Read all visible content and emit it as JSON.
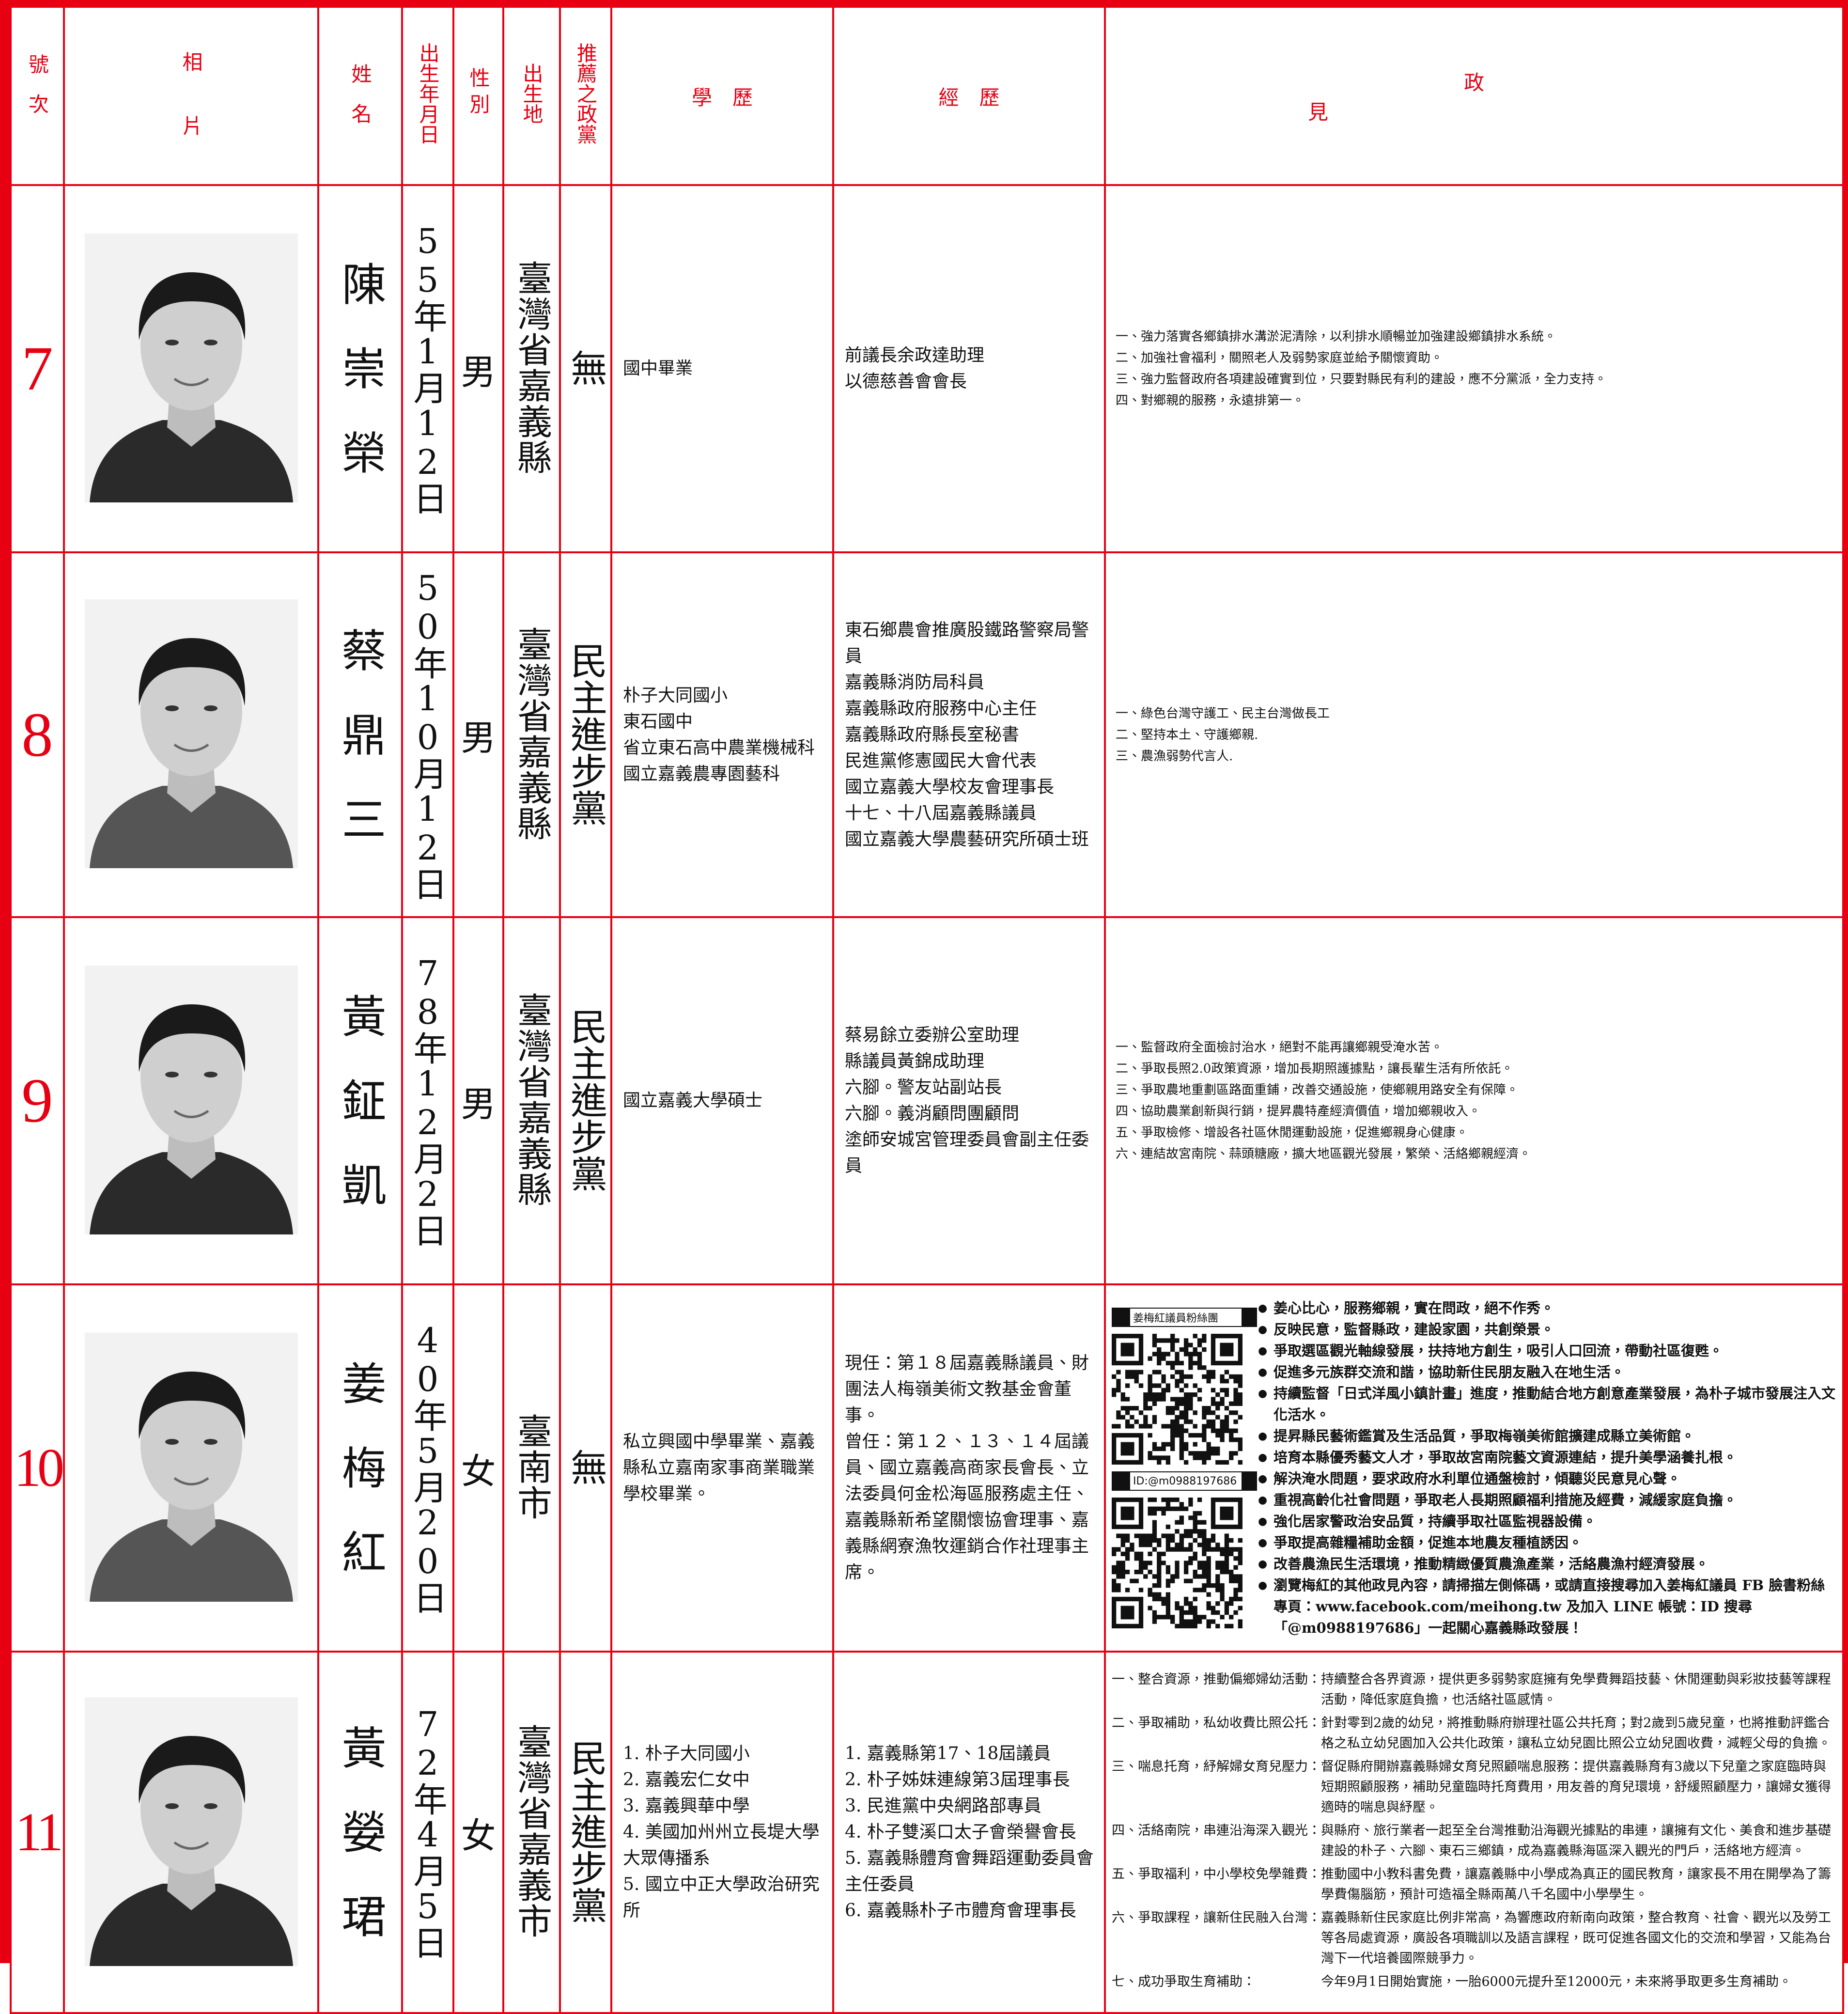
{
  "header": {
    "number": "號次",
    "photo": "相片",
    "name": "姓名",
    "birth": "出生年月日",
    "gender": "性別",
    "birthplace": "出生地",
    "party": "推薦之政黨",
    "education": "學歷",
    "experience": "經歷",
    "platform": "政見"
  },
  "candidates": [
    {
      "number": 7,
      "name": "陳崇榮",
      "birth": "55年1月12日",
      "gender": "男",
      "birthplace": "臺灣省嘉義縣",
      "party": "無",
      "education": [
        "國中畢業"
      ],
      "experience": [
        "前議長余政達助理",
        "以德慈善會會長"
      ],
      "platform": [
        "一、強力落實各鄉鎮排水溝淤泥清除，以利排水順暢並加強建設鄉鎮排水系統。",
        "二、加強社會福利，關照老人及弱勢家庭並給予關懷資助。",
        "三、強力監督政府各項建設確實到位，只要對縣民有利的建設，應不分黨派，全力支持。",
        "四、對鄉親的服務，永遠排第一。"
      ]
    },
    {
      "number": 8,
      "name": "蔡鼎三",
      "birth": "50年10月12日",
      "gender": "男",
      "birthplace": "臺灣省嘉義縣",
      "party": "民主進步黨",
      "education": [
        "朴子大同國小",
        "東石國中",
        "省立東石高中農業機械科",
        "國立嘉義農專園藝科"
      ],
      "experience": [
        "東石鄉農會推廣股鐵路警察局警員",
        "嘉義縣消防局科員",
        "嘉義縣政府服務中心主任",
        "嘉義縣政府縣長室秘書",
        "民進黨修憲國民大會代表",
        "國立嘉義大學校友會理事長",
        "十七、十八屆嘉義縣議員",
        "國立嘉義大學農藝研究所碩士班"
      ],
      "platform": [
        "一、綠色台灣守護工、民主台灣做長工",
        "二、堅持本土、守護鄉親.",
        "三、農漁弱勢代言人."
      ]
    },
    {
      "number": 9,
      "name": "黃鉦凱",
      "birth": "78年12月2日",
      "gender": "男",
      "birthplace": "臺灣省嘉義縣",
      "party": "民主進步黨",
      "education": [
        "國立嘉義大學碩士"
      ],
      "experience": [
        "蔡易餘立委辦公室助理",
        "縣議員黃錦成助理",
        "六腳。警友站副站長",
        "六腳。義消顧問團顧問",
        "塗師安城宮管理委員會副主任委員"
      ],
      "platform": [
        "一、監督政府全面檢討治水，絕對不能再讓鄉親受淹水苦。",
        "二、爭取長照2.0政策資源，增加長期照護據點，讓長輩生活有所依託。",
        "三、爭取農地重劃區路面重鋪，改善交通設施，使鄉親用路安全有保障。",
        "四、協助農業創新與行銷，提昇農特產經濟價值，增加鄉親收入。",
        "五、爭取檢修、增設各社區休閒運動設施，促進鄉親身心健康。",
        "六、連結故宮南院、蒜頭糖廠，擴大地區觀光發展，繁榮、活絡鄉親經濟。"
      ]
    },
    {
      "number": 10,
      "name": "姜梅紅",
      "birth": "40年5月20日",
      "gender": "女",
      "birthplace": "臺南市",
      "party": "無",
      "education": [
        "私立興國中學畢業、嘉義縣私立嘉南家事商業職業學校畢業。"
      ],
      "experience": [
        "現任：第１８屆嘉義縣議員、財團法人梅嶺美術文教基金會董事。",
        "曾任：第１２、１３、１４屆議員、國立嘉義高商家長會長、立法委員何金松海區服務處主任、嘉義縣新希望關懷協會理事、嘉義縣網寮漁牧運銷合作社理事主席。"
      ],
      "qr_labels": [
        "姜梅紅議員粉絲團",
        "ID:@m0988197686"
      ],
      "platform": [
        "姜心比心，服務鄉親，實在問政，絕不作秀。",
        "反映民意，監督縣政，建設家園，共創榮景。",
        "爭取選區觀光軸線發展，扶持地方創生，吸引人口回流，帶動社區復甦。",
        "促進多元族群交流和諧，協助新住民朋友融入在地生活。",
        "持續監督「日式洋風小鎮計畫」進度，推動結合地方創意產業發展，為朴子城市發展注入文化活水。",
        "提昇縣民藝術鑑賞及生活品質，爭取梅嶺美術館擴建成縣立美術館。",
        "培育本縣優秀藝文人才，爭取故宮南院藝文資源連結，提升美學涵養扎根。",
        "解決淹水問題，要求政府水利單位通盤檢討，傾聽災民意見心聲。",
        "重視高齡化社會問題，爭取老人長期照顧福利措施及經費，減緩家庭負擔。",
        "強化居家警政治安品質，持續爭取社區監視器設備。",
        "爭取提高雜糧補助金額，促進本地農友種植誘因。",
        "改善農漁民生活環境，推動精緻優質農漁產業，活絡農漁村經濟發展。",
        "瀏覽梅紅的其他政見內容，請掃描左側條碼，或請直接搜尋加入姜梅紅議員 FB 臉書粉絲專頁：www.facebook.com/meihong.tw 及加入 LINE 帳號：ID 搜尋「@m0988197686」一起關心嘉義縣政發展！"
      ]
    },
    {
      "number": 11,
      "name": "黃嫈珺",
      "birth": "72年4月5日",
      "gender": "女",
      "birthplace": "臺灣省嘉義市",
      "party": "民主進步黨",
      "education": [
        "1. 朴子大同國小",
        "2. 嘉義宏仁女中",
        "3. 嘉義興華中學",
        "4. 美國加州州立長堤大學大眾傳播系",
        "5. 國立中正大學政治研究所"
      ],
      "experience": [
        "1. 嘉義縣第17、18屆議員",
        "2. 朴子姊妹連線第3屆理事長",
        "3. 民進黨中央網路部專員",
        "4. 朴子雙溪口太子會榮譽會長",
        "5. 嘉義縣體育會舞蹈運動委員會主任委員",
        "6. 嘉義縣朴子市體育會理事長"
      ],
      "platform": [
        {
          "label": "一、整合資源，推動偏鄉婦幼活動：",
          "text": "持續整合各界資源，提供更多弱勢家庭擁有免學費舞蹈技藝、休閒運動與彩妝技藝等課程活動，降低家庭負擔，也活絡社區感情。"
        },
        {
          "label": "二、爭取補助，私幼收費比照公托：",
          "text": "針對零到2歲的幼兒，將推動縣府辦理社區公共托育；對2歲到5歲兒童，也將推動評鑑合格之私立幼兒園加入公共化政策，讓私立幼兒園比照公立幼兒園收費，減輕父母的負擔。"
        },
        {
          "label": "三、喘息托育，紓解婦女育兒壓力：",
          "text": "督促縣府開辦嘉義縣婦女育兒照顧喘息服務：提供嘉義縣育有3歲以下兒童之家庭臨時與短期照顧服務，補助兒童臨時托育費用，用友善的育兒環境，舒緩照顧壓力，讓婦女獲得適時的喘息與紓壓。"
        },
        {
          "label": "四、活絡南院，串連沿海深入觀光：",
          "text": "與縣府、旅行業者一起至全台灣推動沿海觀光據點的串連，讓擁有文化、美食和進步基礎建設的朴子、六腳、東石三鄉鎮，成為嘉義縣海區深入觀光的門戶，活絡地方經濟。"
        },
        {
          "label": "五、爭取福利，中小學校免學雜費：",
          "text": "推動國中小教科書免費，讓嘉義縣中小學成為真正的國民教育，讓家長不用在開學為了籌學費傷腦筋，預計可造福全縣兩萬八千名國中小學學生。"
        },
        {
          "label": "六、爭取課程，讓新住民融入台灣：",
          "text": "嘉義縣新住民家庭比例非常高，為響應政府新南向政策，整合教育、社會、觀光以及勞工等各局處資源，廣設各項職訓以及語言課程，既可促進各國文化的交流和學習，又能為台灣下一代培養國際競爭力。"
        },
        {
          "label": "七、成功爭取生育補助：",
          "text": "今年9月1日開始實施，一胎6000元提升至12000元，未來將爭取更多生育補助。"
        }
      ]
    }
  ]
}
